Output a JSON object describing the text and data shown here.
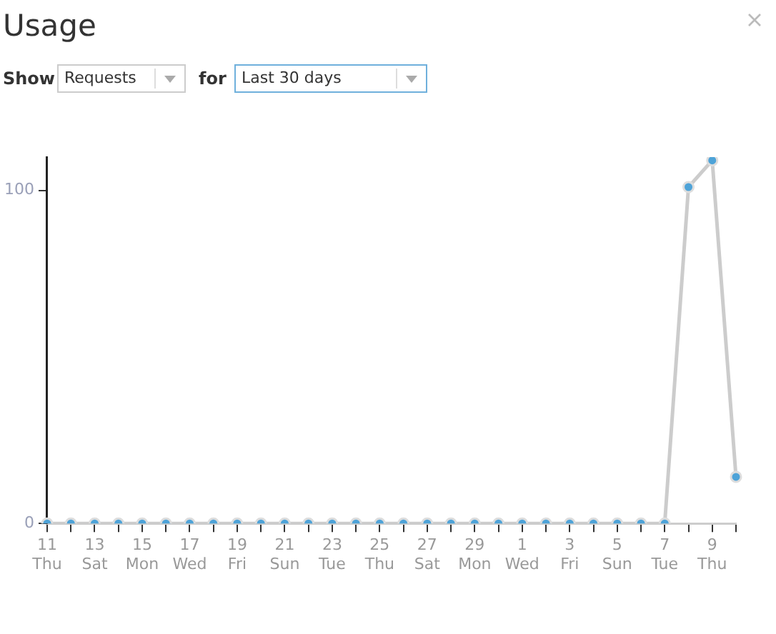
{
  "chart_data": {
    "type": "line",
    "title": "Usage",
    "annotations": [
      "Show",
      "Requests",
      "for",
      "Last 30 days"
    ],
    "categories": [
      "11 Thu",
      null,
      "13 Sat",
      null,
      "15 Mon",
      null,
      "17 Wed",
      null,
      "19 Fri",
      null,
      "21 Sun",
      null,
      "23 Tue",
      null,
      "25 Thu",
      null,
      "27 Sat",
      null,
      "29 Mon",
      null,
      "1 Wed",
      null,
      "3 Fri",
      null,
      "5 Sun",
      null,
      "7 Tue",
      null,
      "9 Thu",
      null
    ],
    "series": [
      {
        "color": "#cccccc",
        "values": [
          0,
          0,
          0,
          0,
          0,
          0,
          0,
          0,
          0,
          0,
          0,
          0,
          0,
          0,
          0,
          0,
          0,
          0,
          0,
          0,
          0,
          0,
          0,
          0,
          0,
          0,
          0,
          101,
          109,
          14
        ]
      }
    ],
    "ylim": [
      0,
      110
    ],
    "yticks": [
      0,
      100
    ],
    "grid": false,
    "legend": false,
    "marker": "circle",
    "line_style": "solid"
  }
}
